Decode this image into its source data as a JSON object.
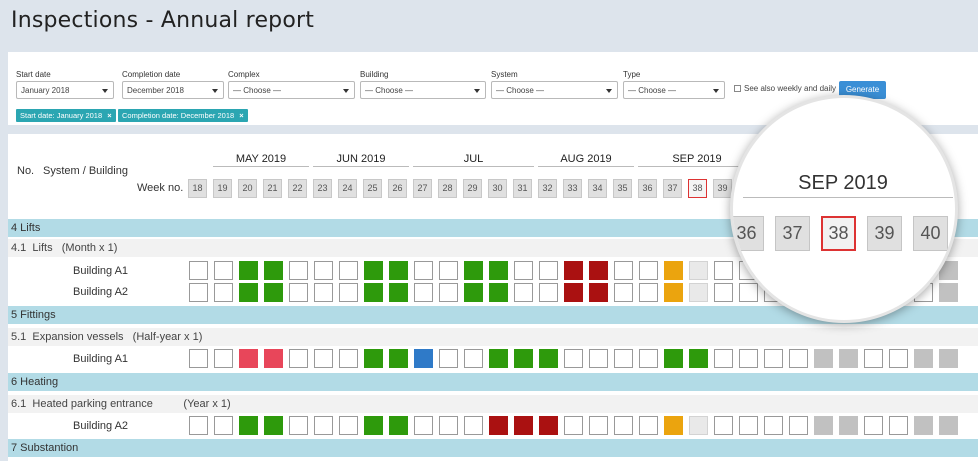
{
  "page": {
    "title": "Inspections - Annual report"
  },
  "filters": {
    "start_label": "Start date",
    "start_value": "January 2018",
    "completion_label": "Completion date",
    "completion_value": "December 2018",
    "complex_label": "Complex",
    "complex_value": "— Choose —",
    "building_label": "Building",
    "building_value": "— Choose —",
    "system_label": "System",
    "system_value": "— Choose —",
    "type_label": "Type",
    "type_value": "— Choose —",
    "weekly_label": "See also weekly and daily",
    "weekly_checked": false,
    "generate_label": "Generate",
    "chip_start_prefix": "Start date:",
    "chip_start_value": "January 2018",
    "chip_completion_prefix": "Completion date:",
    "chip_completion_value": "December 2018",
    "chip_remove": "×"
  },
  "table_header": {
    "no_label": "No.",
    "system_label": "System / Building",
    "week_label": "Week no.",
    "months": [
      "MAY 2019",
      "JUN 2019",
      "JUL",
      "AUG 2019",
      "SEP 2019"
    ],
    "weeks": [
      "18",
      "19",
      "20",
      "21",
      "22",
      "23",
      "24",
      "25",
      "26",
      "27",
      "28",
      "29",
      "30",
      "31",
      "32",
      "33",
      "34",
      "35",
      "36",
      "37",
      "38",
      "39"
    ],
    "current_week": "38"
  },
  "sections": [
    {
      "title": "4 Lifts"
    },
    {
      "title": "5 Fittings"
    },
    {
      "title": "6 Heating"
    },
    {
      "title": "7 Substantion"
    }
  ],
  "subsections": [
    {
      "title": "4.1  Lifts   (Month x 1)"
    },
    {
      "title": "5.1  Expansion vessels   (Half-year x 1)"
    },
    {
      "title": "6.1  Heated parking entrance          (Year x 1)"
    }
  ],
  "rows": [
    {
      "building": "Building A1",
      "cells": [
        "e",
        "e",
        "g",
        "g",
        "e",
        "e",
        "e",
        "g",
        "g",
        "e",
        "e",
        "g",
        "g",
        "e",
        "e",
        "r",
        "r",
        "e",
        "e",
        "y",
        "l",
        "e",
        "e",
        "e",
        "e",
        "e",
        "e",
        "e",
        "e",
        "e",
        "s",
        "e",
        "e"
      ]
    },
    {
      "building": "Building A2",
      "cells": [
        "e",
        "e",
        "g",
        "g",
        "e",
        "e",
        "e",
        "g",
        "g",
        "e",
        "e",
        "g",
        "g",
        "e",
        "e",
        "r",
        "r",
        "e",
        "e",
        "y",
        "l",
        "e",
        "e",
        "e",
        "e",
        "e",
        "e",
        "e",
        "e",
        "e",
        "s",
        "e",
        "e"
      ]
    },
    {
      "building": "Building A1",
      "cells": [
        "e",
        "e",
        "p",
        "p",
        "e",
        "e",
        "e",
        "g",
        "g",
        "b",
        "e",
        "e",
        "g",
        "g",
        "g",
        "e",
        "e",
        "e",
        "e",
        "g",
        "g",
        "e",
        "e",
        "e",
        "e",
        "s",
        "s",
        "e",
        "e",
        "s",
        "s",
        "e",
        "e"
      ]
    },
    {
      "building": "Building A2",
      "cells": [
        "e",
        "e",
        "g",
        "g",
        "e",
        "e",
        "e",
        "g",
        "g",
        "e",
        "e",
        "e",
        "r",
        "r",
        "r",
        "e",
        "e",
        "e",
        "e",
        "y",
        "l",
        "e",
        "e",
        "e",
        "e",
        "s",
        "s",
        "e",
        "e",
        "s",
        "s",
        "e",
        "e"
      ]
    }
  ],
  "legend_colors": {
    "done": "#2e9a0c",
    "overdue": "#aa1111",
    "missed": "#e8465a",
    "extra": "#2f7ac8",
    "pending": "#eba40e",
    "planned": "#c1c1c1",
    "header_band": "#b2dbe6",
    "accent": "#3a8fd6"
  },
  "magnifier": {
    "month": "SEP 2019",
    "weeks": [
      "36",
      "37",
      "38",
      "39",
      "40"
    ],
    "current": "38"
  }
}
